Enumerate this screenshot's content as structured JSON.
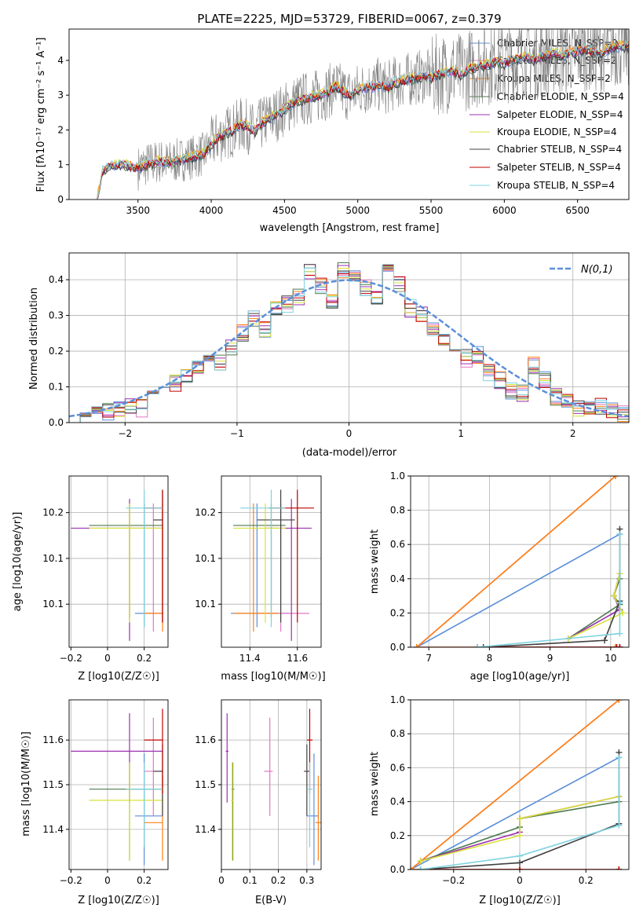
{
  "colors": {
    "Chabrier MILES": "#5b8fd9",
    "Salpeter MILES": "#e377c2",
    "Kroupa MILES": "#ff7f0e",
    "Chabrier ELODIE": "#4e7a4e",
    "Salpeter ELODIE": "#9b30b0",
    "Kroupa ELODIE": "#d8e03a",
    "Chabrier STELIB": "#404040",
    "Salpeter STELIB": "#c00000",
    "Kroupa STELIB": "#7fd3e0",
    "data_spectrum": "#808080",
    "gaussian": "#5b8fd9"
  },
  "chart_data": [
    {
      "id": "spectrum",
      "type": "line",
      "title": "PLATE=2225, MJD=53729, FIBERID=0067, z=0.379",
      "xlabel": "wavelength [Angstrom, rest frame]",
      "ylabel": "Flux [fλ10⁻¹⁷ erg cm⁻² s⁻¹ A⁻¹]",
      "xlim": [
        3030,
        6850
      ],
      "ylim": [
        0,
        4.9
      ],
      "xticks": [
        3500,
        4000,
        4500,
        5000,
        5500,
        6000,
        6500
      ],
      "yticks": [
        0,
        1,
        2,
        3,
        4
      ],
      "grid": false,
      "legend_position": "right",
      "legend": [
        "Chabrier MILES, N_SSP=2",
        "Salpeter MILES, N_SSP=2",
        "Kroupa MILES, N_SSP=2",
        "Chabrier ELODIE, N_SSP=4",
        "Salpeter ELODIE, N_SSP=4",
        "Kroupa ELODIE, N_SSP=4",
        "Chabrier STELIB, N_SSP=4",
        "Salpeter STELIB, N_SSP=4",
        "Kroupa STELIB, N_SSP=4"
      ],
      "model_continuum": {
        "x": [
          3220,
          3260,
          3300,
          3350,
          3400,
          3450,
          3500,
          3550,
          3600,
          3650,
          3700,
          3750,
          3800,
          3850,
          3900,
          3950,
          4000,
          4050,
          4100,
          4150,
          4200,
          4250,
          4300,
          4350,
          4400,
          4450,
          4500,
          4550,
          4600,
          4650,
          4700,
          4750,
          4800,
          4850,
          4900,
          4950,
          5000,
          5050,
          5100,
          5150,
          5200,
          5250,
          5300,
          5350,
          5400,
          5450,
          5500,
          5550,
          5600,
          5650,
          5700,
          5750,
          5800,
          5850,
          5900,
          5950,
          6000,
          6050,
          6100,
          6150,
          6200,
          6250,
          6300,
          6350,
          6400,
          6450,
          6500,
          6550,
          6600,
          6650,
          6700,
          6750
        ],
        "y": [
          0.0,
          0.8,
          0.95,
          1.0,
          1.0,
          0.95,
          0.9,
          1.0,
          1.05,
          1.1,
          1.05,
          1.1,
          1.15,
          1.2,
          1.25,
          1.3,
          1.6,
          1.8,
          1.9,
          2.0,
          2.15,
          2.1,
          1.95,
          2.2,
          2.35,
          2.45,
          2.6,
          2.75,
          2.85,
          2.9,
          2.95,
          3.0,
          3.1,
          3.25,
          3.1,
          3.0,
          3.15,
          3.2,
          3.25,
          3.3,
          3.2,
          3.35,
          3.4,
          3.45,
          3.5,
          3.55,
          3.5,
          3.6,
          3.65,
          3.7,
          3.6,
          3.75,
          3.8,
          3.85,
          3.9,
          3.95,
          3.9,
          4.0,
          4.05,
          4.1,
          4.0,
          4.1,
          4.15,
          4.2,
          4.15,
          4.2,
          4.25,
          4.3,
          4.25,
          4.2,
          4.3,
          4.4
        ]
      }
    },
    {
      "id": "residuals",
      "type": "line",
      "xlabel": "(data-model)/error",
      "ylabel": "Normed distribution",
      "xlim": [
        -2.5,
        2.5
      ],
      "ylim": [
        0,
        0.475
      ],
      "xticks": [
        -2,
        -1,
        0,
        1,
        2
      ],
      "yticks": [
        0.0,
        0.1,
        0.2,
        0.3,
        0.4
      ],
      "grid": true,
      "legend_position": "top-right",
      "legend": [
        "N(0,1)"
      ],
      "bins": [
        -2.5,
        -2.4,
        -2.3,
        -2.2,
        -2.1,
        -2.0,
        -1.9,
        -1.8,
        -1.7,
        -1.6,
        -1.5,
        -1.4,
        -1.3,
        -1.2,
        -1.1,
        -1.0,
        -0.9,
        -0.8,
        -0.7,
        -0.6,
        -0.5,
        -0.4,
        -0.3,
        -0.2,
        -0.1,
        0.0,
        0.1,
        0.2,
        0.3,
        0.4,
        0.5,
        0.6,
        0.7,
        0.8,
        0.9,
        1.0,
        1.1,
        1.2,
        1.3,
        1.4,
        1.5,
        1.6,
        1.7,
        1.8,
        1.9,
        2.0,
        2.1,
        2.2,
        2.3,
        2.4,
        2.5
      ],
      "hist_base": [
        0.015,
        0.03,
        0.035,
        0.03,
        0.04,
        0.05,
        0.04,
        0.09,
        0.1,
        0.11,
        0.13,
        0.15,
        0.19,
        0.17,
        0.21,
        0.25,
        0.29,
        0.26,
        0.32,
        0.33,
        0.35,
        0.42,
        0.38,
        0.34,
        0.43,
        0.41,
        0.38,
        0.35,
        0.42,
        0.39,
        0.32,
        0.3,
        0.26,
        0.24,
        0.22,
        0.18,
        0.19,
        0.14,
        0.12,
        0.09,
        0.08,
        0.16,
        0.12,
        0.07,
        0.06,
        0.04,
        0.035,
        0.045,
        0.03,
        0.025
      ]
    },
    {
      "id": "Z-vs-age",
      "type": "scatter",
      "xlabel": "Z [log10(Z/Z☉)]",
      "ylabel": "age  [log10(age/yr)]",
      "xlim": [
        -0.21,
        0.33
      ],
      "ylim": [
        10.003,
        10.19
      ],
      "xticks": [
        -0.2,
        0.0,
        0.2
      ],
      "yticks": [
        10.05,
        10.1,
        10.15
      ],
      "grid": true
    },
    {
      "id": "mass-vs-age",
      "type": "scatter",
      "xlabel": "mass [log10(M/M☉)]",
      "ylabel": "",
      "xlim": [
        11.28,
        11.7
      ],
      "ylim": [
        10.003,
        10.19
      ],
      "xticks": [
        11.4,
        11.6
      ],
      "yticks": [
        10.05,
        10.1,
        10.15
      ],
      "grid": true
    },
    {
      "id": "age-vs-weight",
      "type": "line",
      "xlabel": "age  [log10(age/yr)]",
      "ylabel": "mass weight",
      "xlim": [
        6.7,
        10.3
      ],
      "ylim": [
        0,
        1.0
      ],
      "xticks": [
        7,
        8,
        9,
        10
      ],
      "yticks": [
        0.0,
        0.2,
        0.4,
        0.6,
        0.8,
        1.0
      ],
      "grid": true
    },
    {
      "id": "Z-vs-mass",
      "type": "scatter",
      "xlabel": "Z [log10(Z/Z☉)]",
      "ylabel": "mass [log10(M/M☉)]",
      "xlim": [
        -0.21,
        0.33
      ],
      "ylim": [
        11.31,
        11.69
      ],
      "xticks": [
        -0.2,
        0.0,
        0.2
      ],
      "yticks": [
        11.4,
        11.5,
        11.6
      ],
      "grid": true
    },
    {
      "id": "EBV-vs-mass",
      "type": "scatter",
      "xlabel": "E(B-V)",
      "ylabel": "",
      "xlim": [
        0.0,
        0.35
      ],
      "ylim": [
        11.31,
        11.69
      ],
      "xticks": [
        0.0,
        0.1,
        0.2,
        0.3
      ],
      "yticks": [
        11.4,
        11.5,
        11.6
      ],
      "grid": true
    },
    {
      "id": "Z-vs-weight",
      "type": "line",
      "xlabel": "Z [log10(Z/Z☉)]",
      "ylabel": "mass weight",
      "xlim": [
        -0.33,
        0.33
      ],
      "ylim": [
        0,
        1.0
      ],
      "xticks": [
        -0.2,
        0.0,
        0.2
      ],
      "yticks": [
        0.0,
        0.2,
        0.4,
        0.6,
        0.8,
        1.0
      ],
      "grid": true
    }
  ],
  "fits": {
    "Z": {
      "Chabrier MILES": [
        0.2,
        0.15,
        0.3
      ],
      "Salpeter MILES": [
        0.25,
        0.2,
        0.3
      ],
      "Kroupa MILES": [
        0.3,
        0.2,
        0.3
      ],
      "Chabrier ELODIE": [
        0.12,
        -0.1,
        0.3
      ],
      "Salpeter ELODIE": [
        0.12,
        -0.2,
        0.3
      ],
      "Kroupa ELODIE": [
        0.12,
        -0.1,
        0.3
      ],
      "Chabrier STELIB": [
        0.3,
        0.25,
        0.3
      ],
      "Salpeter STELIB": [
        0.3,
        0.2,
        0.3
      ],
      "Kroupa STELIB": [
        0.2,
        0.1,
        0.3
      ]
    },
    "age": {
      "Chabrier MILES": [
        10.04,
        10.025,
        10.16
      ],
      "Salpeter MILES": [
        10.04,
        10.02,
        10.16
      ],
      "Kroupa MILES": [
        10.04,
        10.02,
        10.16
      ],
      "Chabrier ELODIE": [
        10.136,
        10.035,
        10.16
      ],
      "Salpeter ELODIE": [
        10.133,
        10.01,
        10.165
      ],
      "Kroupa ELODIE": [
        10.133,
        10.03,
        10.16
      ],
      "Chabrier STELIB": [
        10.142,
        10.03,
        10.175
      ],
      "Salpeter STELIB": [
        10.155,
        10.03,
        10.175
      ],
      "Kroupa STELIB": [
        10.155,
        10.025,
        10.175
      ]
    },
    "mass": {
      "Chabrier MILES": [
        11.43,
        11.32,
        11.57
      ],
      "Salpeter MILES": [
        11.53,
        11.43,
        11.65
      ],
      "Kroupa MILES": [
        11.415,
        11.33,
        11.52
      ],
      "Chabrier ELODIE": [
        11.49,
        11.33,
        11.55
      ],
      "Salpeter ELODIE": [
        11.575,
        11.46,
        11.66
      ],
      "Kroupa ELODIE": [
        11.465,
        11.33,
        11.55
      ],
      "Chabrier STELIB": [
        11.53,
        11.43,
        11.59
      ],
      "Salpeter STELIB": [
        11.6,
        11.48,
        11.67
      ],
      "Kroupa STELIB": [
        11.49,
        11.36,
        11.55
      ]
    },
    "ebv": {
      "Chabrier MILES": [
        0.325,
        0.3,
        0.34
      ],
      "Salpeter MILES": [
        0.17,
        0.15,
        0.18
      ],
      "Kroupa MILES": [
        0.34,
        0.33,
        0.35
      ],
      "Chabrier ELODIE": [
        0.04,
        0.035,
        0.045
      ],
      "Salpeter ELODIE": [
        0.02,
        0.015,
        0.025
      ],
      "Kroupa ELODIE": [
        0.038,
        0.034,
        0.043
      ],
      "Chabrier STELIB": [
        0.3,
        0.29,
        0.31
      ],
      "Salpeter STELIB": [
        0.31,
        0.3,
        0.32
      ],
      "Kroupa STELIB": [
        0.31,
        0.3,
        0.32
      ]
    },
    "ages": {
      "Chabrier MILES": [
        10.15,
        6.8,
        10.15,
        10.15
      ],
      "Salpeter MILES": [
        10.08,
        6.8,
        10.08,
        10.08
      ],
      "Kroupa MILES": [
        10.08,
        6.8,
        10.08,
        10.08
      ],
      "Chabrier ELODIE": [
        9.3,
        10.15,
        10.05,
        10.15
      ],
      "Salpeter ELODIE": [
        9.3,
        10.15,
        10.05,
        10.15
      ],
      "Kroupa ELODIE": [
        9.3,
        10.2,
        10.05,
        10.15
      ],
      "Chabrier STELIB": [
        7.9,
        9.9,
        10.15,
        10.15
      ],
      "Salpeter STELIB": [
        7.8,
        10.1,
        10.15,
        10.15
      ],
      "Kroupa STELIB": [
        7.8,
        10.15,
        10.15,
        10.15
      ]
    },
    "weights": {
      "Chabrier MILES": [
        0.66,
        0.0,
        0.0,
        0.0
      ],
      "Salpeter MILES": [
        1.0,
        0.0,
        0.0,
        0.0
      ],
      "Kroupa MILES": [
        1.0,
        0.0,
        0.0,
        0.0
      ],
      "Chabrier ELODIE": [
        0.05,
        0.25,
        0.3,
        0.4
      ],
      "Salpeter ELODIE": [
        0.05,
        0.22,
        0.3,
        0.43
      ],
      "Kroupa ELODIE": [
        0.05,
        0.2,
        0.3,
        0.43
      ],
      "Chabrier STELIB": [
        0.0,
        0.04,
        0.27,
        0.69
      ],
      "Salpeter STELIB": [
        0.0,
        0.0,
        0.0,
        0.0
      ],
      "Kroupa STELIB": [
        0.0,
        0.08,
        0.26,
        0.66
      ]
    },
    "metals": {
      "Chabrier MILES": [
        0.3,
        -0.33,
        0.0,
        0.0
      ],
      "Salpeter MILES": [
        0.3,
        -0.33,
        0.0,
        0.0
      ],
      "Kroupa MILES": [
        0.3,
        -0.33,
        0.0,
        0.0
      ],
      "Chabrier ELODIE": [
        -0.3,
        0.0,
        0.0,
        0.3
      ],
      "Salpeter ELODIE": [
        -0.3,
        0.0,
        0.0,
        0.3
      ],
      "Kroupa ELODIE": [
        -0.3,
        0.0,
        0.0,
        0.3
      ],
      "Chabrier STELIB": [
        -0.3,
        0.0,
        0.3,
        0.3
      ],
      "Salpeter STELIB": [
        -0.3,
        0.0,
        0.3,
        0.3
      ],
      "Kroupa STELIB": [
        -0.3,
        0.0,
        0.3,
        0.3
      ]
    }
  }
}
